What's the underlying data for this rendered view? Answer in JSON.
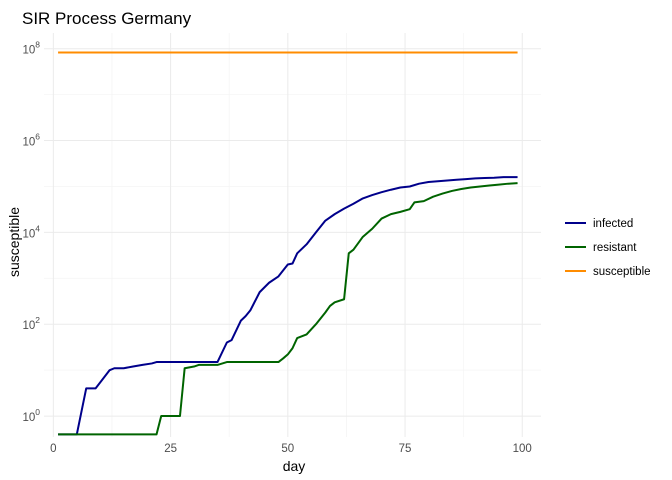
{
  "chart_data": {
    "type": "line",
    "title": "SIR Process Germany",
    "xlabel": "day",
    "ylabel": "susceptible",
    "y_scale": "log10",
    "xlim": [
      -2,
      104
    ],
    "ylim": [
      0.35,
      220000000
    ],
    "x_ticks": [
      {
        "value": 0,
        "label": "0"
      },
      {
        "value": 25,
        "label": "25"
      },
      {
        "value": 50,
        "label": "50"
      },
      {
        "value": 75,
        "label": "75"
      },
      {
        "value": 100,
        "label": "100"
      }
    ],
    "y_ticks": [
      {
        "value": 1,
        "base": "10",
        "exp": "0"
      },
      {
        "value": 100,
        "base": "10",
        "exp": "2"
      },
      {
        "value": 10000,
        "base": "10",
        "exp": "4"
      },
      {
        "value": 1000000,
        "base": "10",
        "exp": "6"
      },
      {
        "value": 100000000,
        "base": "10",
        "exp": "8"
      }
    ],
    "grid": true,
    "legend_position": "right",
    "series": [
      {
        "name": "infected",
        "color": "#00008b",
        "points": [
          [
            1,
            0.4
          ],
          [
            5,
            0.4
          ],
          [
            7,
            4
          ],
          [
            9,
            4
          ],
          [
            12,
            10
          ],
          [
            13,
            11
          ],
          [
            15,
            11
          ],
          [
            17,
            12
          ],
          [
            19,
            13
          ],
          [
            21,
            14
          ],
          [
            22,
            15
          ],
          [
            35,
            15
          ],
          [
            37,
            40
          ],
          [
            38,
            45
          ],
          [
            40,
            120
          ],
          [
            41,
            150
          ],
          [
            42,
            200
          ],
          [
            44,
            500
          ],
          [
            46,
            800
          ],
          [
            48,
            1100
          ],
          [
            50,
            2000
          ],
          [
            51,
            2100
          ],
          [
            52,
            3500
          ],
          [
            54,
            5500
          ],
          [
            56,
            10000
          ],
          [
            58,
            18000
          ],
          [
            60,
            25000
          ],
          [
            62,
            33000
          ],
          [
            64,
            42000
          ],
          [
            66,
            55000
          ],
          [
            68,
            65000
          ],
          [
            70,
            75000
          ],
          [
            72,
            85000
          ],
          [
            74,
            95000
          ],
          [
            76,
            100000
          ],
          [
            78,
            115000
          ],
          [
            80,
            125000
          ],
          [
            82,
            130000
          ],
          [
            84,
            135000
          ],
          [
            86,
            140000
          ],
          [
            88,
            145000
          ],
          [
            90,
            150000
          ],
          [
            92,
            153000
          ],
          [
            94,
            155000
          ],
          [
            96,
            160000
          ],
          [
            99,
            160000
          ]
        ]
      },
      {
        "name": "resistant",
        "color": "#006400",
        "points": [
          [
            1,
            0.4
          ],
          [
            22,
            0.4
          ],
          [
            23,
            1
          ],
          [
            27,
            1
          ],
          [
            28,
            11
          ],
          [
            30,
            12
          ],
          [
            31,
            13
          ],
          [
            35,
            13
          ],
          [
            37,
            15
          ],
          [
            48,
            15
          ],
          [
            49,
            18
          ],
          [
            50,
            22
          ],
          [
            51,
            30
          ],
          [
            52,
            50
          ],
          [
            54,
            60
          ],
          [
            56,
            100
          ],
          [
            58,
            180
          ],
          [
            59,
            250
          ],
          [
            60,
            300
          ],
          [
            62,
            350
          ],
          [
            63,
            3500
          ],
          [
            64,
            4200
          ],
          [
            66,
            8000
          ],
          [
            68,
            12000
          ],
          [
            70,
            20000
          ],
          [
            72,
            25000
          ],
          [
            74,
            28000
          ],
          [
            76,
            32000
          ],
          [
            77,
            45000
          ],
          [
            79,
            48000
          ],
          [
            81,
            60000
          ],
          [
            83,
            70000
          ],
          [
            85,
            80000
          ],
          [
            87,
            88000
          ],
          [
            89,
            95000
          ],
          [
            91,
            100000
          ],
          [
            93,
            105000
          ],
          [
            95,
            110000
          ],
          [
            97,
            115000
          ],
          [
            99,
            118000
          ]
        ]
      },
      {
        "name": "susceptible",
        "color": "#ff8c00",
        "points": [
          [
            1,
            83000000
          ],
          [
            99,
            82800000
          ]
        ]
      }
    ]
  }
}
